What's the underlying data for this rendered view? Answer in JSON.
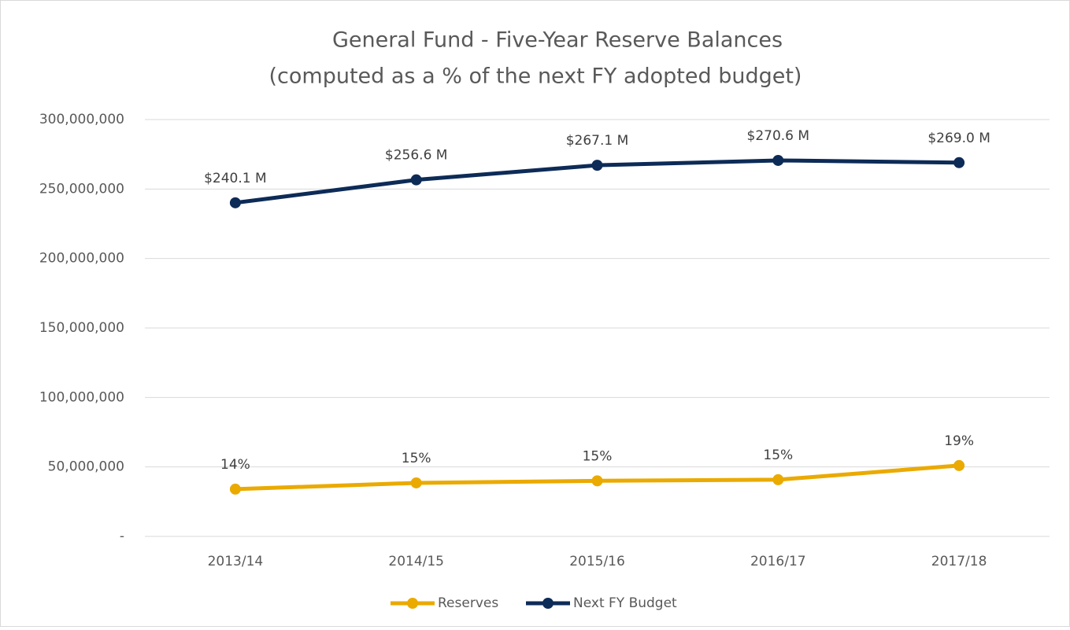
{
  "chart_data": {
    "type": "line",
    "title": "General Fund - Five-Year Reserve Balances",
    "subtitle": "(computed as a % of the next FY adopted budget)",
    "categories": [
      "2013/14",
      "2014/15",
      "2015/16",
      "2016/17",
      "2017/18"
    ],
    "series": [
      {
        "name": "Reserves",
        "color": "#eaaa00",
        "values": [
          34000000,
          38500000,
          40000000,
          40800000,
          51000000
        ],
        "value_labels": [
          "14%",
          "15%",
          "15%",
          "15%",
          "19%"
        ]
      },
      {
        "name": "Next FY Budget",
        "color": "#0d2b57",
        "values": [
          240100000,
          256600000,
          267100000,
          270600000,
          269000000
        ],
        "value_labels": [
          "$240.1 M",
          "$256.6 M",
          "$267.1 M",
          "$270.6 M",
          "$269.0 M"
        ]
      }
    ],
    "ylim": [
      0,
      300000000
    ],
    "yticks": [
      {
        "value": 0,
        "label": "-"
      },
      {
        "value": 50000000,
        "label": "50,000,000"
      },
      {
        "value": 100000000,
        "label": "100,000,000"
      },
      {
        "value": 150000000,
        "label": "150,000,000"
      },
      {
        "value": 200000000,
        "label": "200,000,000"
      },
      {
        "value": 250000000,
        "label": "250,000,000"
      },
      {
        "value": 300000000,
        "label": "300,000,000"
      }
    ],
    "grid": true,
    "legend": "bottom"
  }
}
